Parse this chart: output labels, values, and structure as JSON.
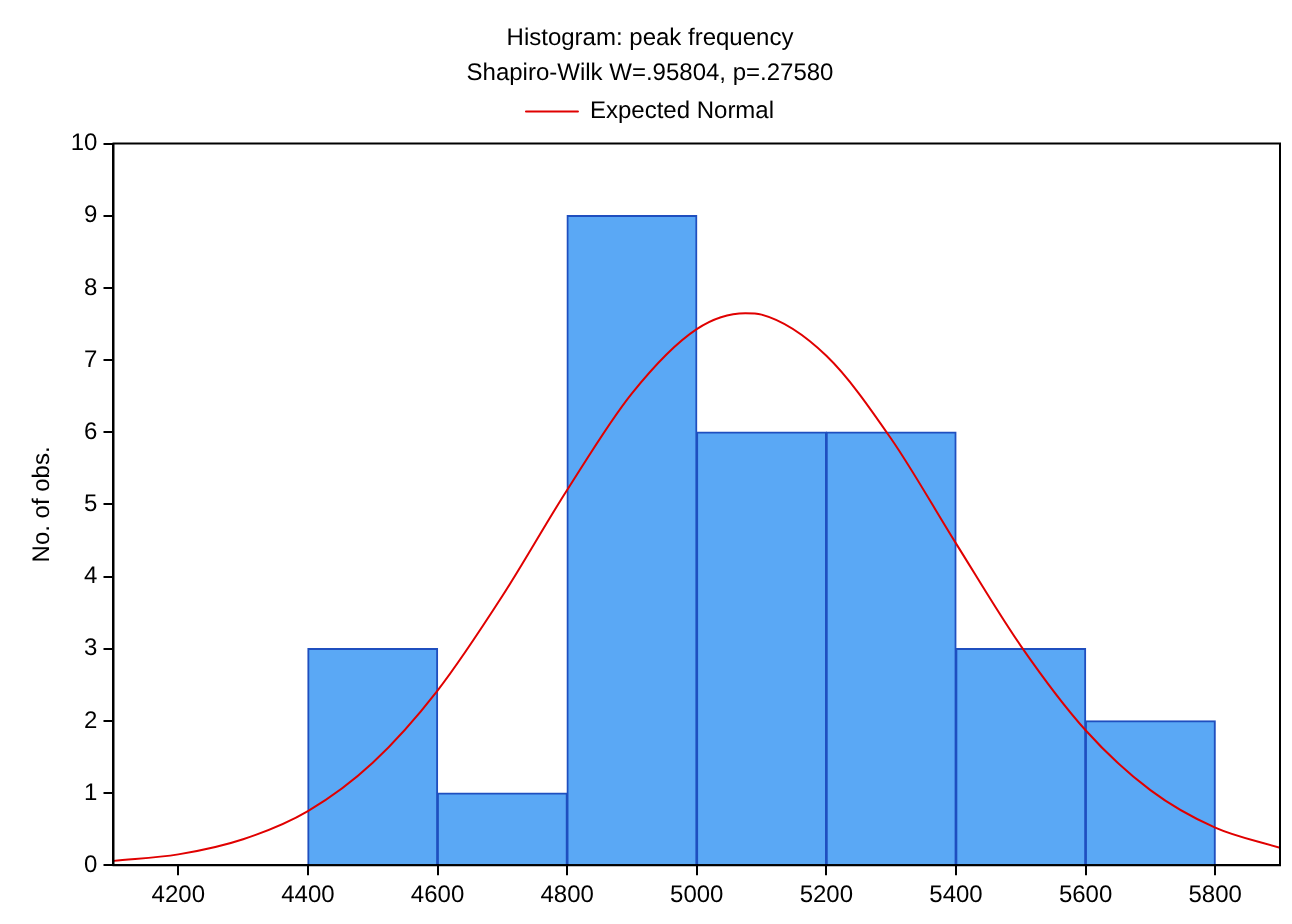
{
  "chart_data": {
    "type": "histogram",
    "title": "Histogram: peak frequency",
    "subtitle": "Shapiro-Wilk W=.95804, p=.27580",
    "ylabel": "No. of obs.",
    "bins": [
      4400,
      4600,
      4800,
      5000,
      5200,
      5400,
      5600,
      5800
    ],
    "values": [
      3,
      1,
      9,
      6,
      6,
      3,
      2
    ],
    "color": "#5aa8f5",
    "series": [
      {
        "name": "Expected Normal",
        "type": "line",
        "color": "#e00000",
        "x": [
          4100,
          4200,
          4300,
          4400,
          4500,
          4600,
          4700,
          4800,
          4900,
          5000,
          5075,
          5100,
          5200,
          5300,
          5400,
          5500,
          5600,
          5700,
          5800,
          5900
        ],
        "values": [
          0.06,
          0.15,
          0.36,
          0.75,
          1.42,
          2.42,
          3.73,
          5.2,
          6.54,
          7.43,
          7.65,
          7.63,
          7.06,
          5.91,
          4.46,
          3.04,
          1.87,
          1.04,
          0.52,
          0.24
        ]
      }
    ],
    "xlim": [
      4100,
      5900
    ],
    "xticks": [
      4200,
      4400,
      4600,
      4800,
      5000,
      5200,
      5400,
      5600,
      5800
    ],
    "ylim": [
      0,
      10
    ],
    "yticks": [
      0,
      1,
      2,
      3,
      4,
      5,
      6,
      7,
      8,
      9,
      10
    ],
    "grid": false,
    "legend": "top"
  }
}
